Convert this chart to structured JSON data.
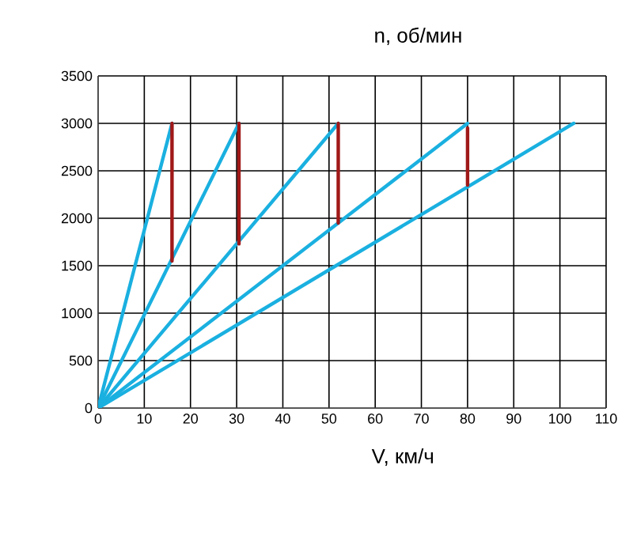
{
  "chart_data": {
    "type": "line",
    "title": "n, об/мин",
    "xlabel": "V, км/ч",
    "xlim": [
      0,
      110
    ],
    "xticks": [
      0,
      10,
      20,
      30,
      40,
      50,
      60,
      70,
      80,
      90,
      100,
      110
    ],
    "ylim": [
      0,
      3500
    ],
    "yticks": [
      0,
      500,
      1000,
      1500,
      2000,
      2500,
      3000,
      3500
    ],
    "grid": true,
    "marker": "none",
    "line_style": "solid",
    "series": [
      {
        "color": "#1ab0e0",
        "x": [
          0,
          16
        ],
        "values": [
          0,
          3000
        ]
      },
      {
        "color": "#1ab0e0",
        "x": [
          0,
          30.5
        ],
        "values": [
          0,
          3000
        ]
      },
      {
        "color": "#1ab0e0",
        "x": [
          0,
          52
        ],
        "values": [
          0,
          3000
        ]
      },
      {
        "color": "#1ab0e0",
        "x": [
          0,
          80
        ],
        "values": [
          0,
          3000
        ]
      },
      {
        "color": "#1ab0e0",
        "x": [
          0,
          103
        ],
        "values": [
          0,
          3000
        ]
      },
      {
        "color": "#a01818",
        "x": [
          16,
          16
        ],
        "values": [
          1550,
          3000
        ]
      },
      {
        "color": "#a01818",
        "x": [
          30.5,
          30.5
        ],
        "values": [
          1730,
          3000
        ]
      },
      {
        "color": "#a01818",
        "x": [
          52,
          52
        ],
        "values": [
          1950,
          3000
        ]
      },
      {
        "color": "#a01818",
        "x": [
          80,
          80
        ],
        "values": [
          2350,
          2950
        ]
      }
    ]
  }
}
